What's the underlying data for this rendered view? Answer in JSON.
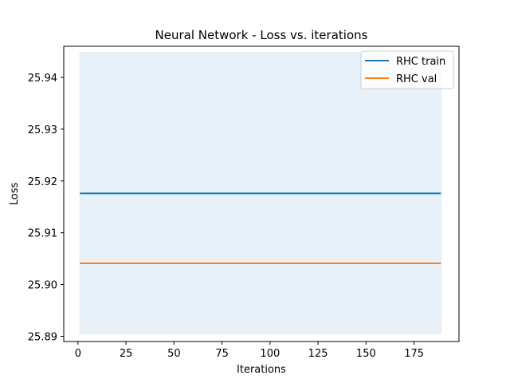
{
  "chart_data": {
    "type": "line",
    "title": "Neural Network - Loss vs. iterations",
    "xlabel": "Iterations",
    "ylabel": "Loss",
    "xlim": [
      -7.4,
      198.4
    ],
    "ylim": [
      25.889,
      25.946
    ],
    "xticks": [
      0,
      25,
      50,
      75,
      100,
      125,
      150,
      175
    ],
    "yticks": [
      25.89,
      25.9,
      25.91,
      25.92,
      25.93,
      25.94
    ],
    "ytick_labels": [
      "25.89",
      "25.90",
      "25.91",
      "25.92",
      "25.93",
      "25.94"
    ],
    "grid": false,
    "legend_position": "top-right",
    "band": {
      "x": [
        1,
        189
      ],
      "lower": 25.8905,
      "upper": 25.9448,
      "color": "#1f77b4",
      "opacity": 0.1
    },
    "series": [
      {
        "name": "RHC train",
        "x": [
          1,
          189
        ],
        "values": [
          25.9176,
          25.9176
        ],
        "color": "#1f77b4"
      },
      {
        "name": "RHC val",
        "x": [
          1,
          189
        ],
        "values": [
          25.9041,
          25.9041
        ],
        "color": "#ff7f0e"
      }
    ]
  }
}
